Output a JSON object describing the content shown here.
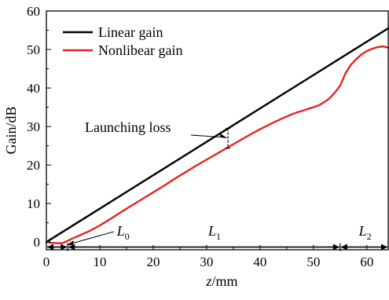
{
  "chart_data": {
    "type": "line",
    "xlabel_italic": "z",
    "xlabel_unit": "/mm",
    "ylabel": "Gain/dB",
    "xlim": [
      0,
      64
    ],
    "ylim": [
      -2,
      60
    ],
    "x_ticks": [
      0,
      10,
      20,
      30,
      40,
      50,
      60
    ],
    "y_ticks": [
      0,
      10,
      20,
      30,
      40,
      50,
      60
    ],
    "grid": false,
    "legend_position": "top-left",
    "series": [
      {
        "name": "Linear gain",
        "color": "#000000",
        "x": [
          0,
          64
        ],
        "y": [
          0,
          55.5
        ]
      },
      {
        "name": "Nonlibear gain",
        "color": "#e8231e",
        "x": [
          0,
          1,
          2,
          3,
          4,
          5,
          6,
          8,
          10,
          12,
          14,
          16,
          18,
          20,
          22,
          24,
          26,
          28,
          30,
          32,
          34,
          36,
          38,
          40,
          42,
          44,
          46,
          47,
          48,
          49,
          50,
          51,
          52,
          53,
          54,
          55,
          56,
          57,
          58,
          59,
          60,
          61,
          62,
          63,
          64
        ],
        "y": [
          0,
          -0.2,
          -0.3,
          -0.3,
          0.3,
          1.0,
          1.6,
          2.8,
          4.3,
          6.0,
          7.8,
          9.5,
          11.2,
          12.9,
          14.6,
          16.4,
          18.1,
          19.8,
          21.4,
          23.0,
          24.6,
          26.2,
          27.8,
          29.3,
          30.7,
          32.0,
          33.2,
          33.7,
          34.1,
          34.6,
          35.0,
          35.5,
          36.3,
          37.3,
          38.8,
          40.6,
          43.8,
          46.0,
          47.5,
          48.7,
          49.6,
          50.2,
          50.6,
          50.8,
          50.5
        ]
      }
    ],
    "annotation": {
      "text": "Launching loss",
      "x": 34,
      "y_top": 29.5,
      "y_bottom": 24.4
    },
    "regions": [
      {
        "label": "L",
        "sub": "0",
        "x_start": 0,
        "x_end": 4
      },
      {
        "label": "L",
        "sub": "1",
        "x_start": 4,
        "x_end": 55
      },
      {
        "label": "L",
        "sub": "2",
        "x_start": 55,
        "x_end": 64
      }
    ]
  }
}
